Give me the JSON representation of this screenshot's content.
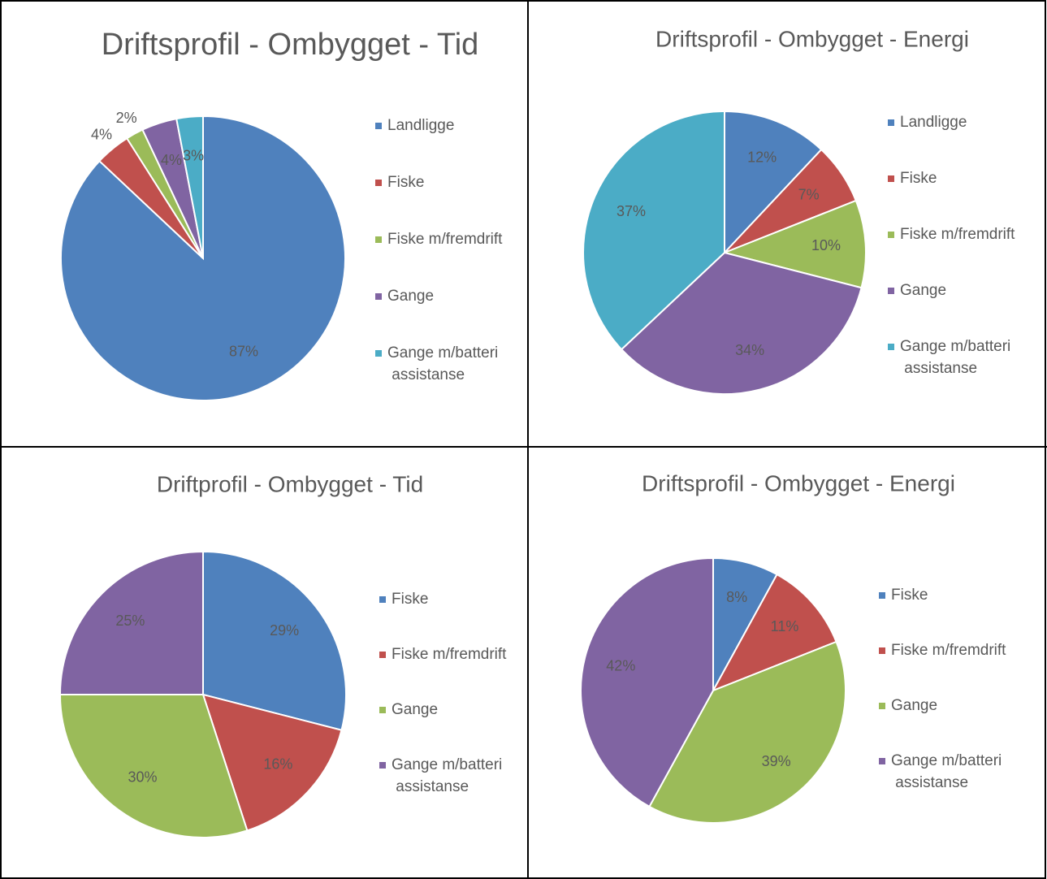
{
  "chart_data": [
    {
      "type": "pie",
      "title": "Driftsprofil - Ombygget - Tid",
      "categories": [
        "Landligge",
        "Fiske",
        "Fiske m/fremdrift",
        "Gange",
        "Gange m/batteri assistanse"
      ],
      "values": [
        87,
        4,
        2,
        4,
        3
      ],
      "value_labels": [
        "87%",
        "4%",
        "2%",
        "4%",
        "3%"
      ],
      "colors": [
        "#4f81bd",
        "#c0504d",
        "#9bbb59",
        "#8064a2",
        "#4bacc6"
      ]
    },
    {
      "type": "pie",
      "title": "Driftsprofil - Ombygget - Energi",
      "categories": [
        "Landligge",
        "Fiske",
        "Fiske m/fremdrift",
        "Gange",
        "Gange m/batteri assistanse"
      ],
      "values": [
        12,
        7,
        10,
        34,
        37
      ],
      "value_labels": [
        "12%",
        "7%",
        "10%",
        "34%",
        "37%"
      ],
      "colors": [
        "#4f81bd",
        "#c0504d",
        "#9bbb59",
        "#8064a2",
        "#4bacc6"
      ]
    },
    {
      "type": "pie",
      "title": "Driftprofil - Ombygget - Tid",
      "categories": [
        "Fiske",
        "Fiske m/fremdrift",
        "Gange",
        "Gange m/batteri assistanse"
      ],
      "values": [
        29,
        16,
        30,
        25
      ],
      "value_labels": [
        "29%",
        "16%",
        "30%",
        "25%"
      ],
      "colors": [
        "#4f81bd",
        "#c0504d",
        "#9bbb59",
        "#8064a2"
      ]
    },
    {
      "type": "pie",
      "title": "Driftsprofil - Ombygget - Energi",
      "categories": [
        "Fiske",
        "Fiske m/fremdrift",
        "Gange",
        "Gange m/batteri assistanse"
      ],
      "values": [
        8,
        11,
        39,
        42
      ],
      "value_labels": [
        "8%",
        "11%",
        "39%",
        "42%"
      ],
      "colors": [
        "#4f81bd",
        "#c0504d",
        "#9bbb59",
        "#8064a2"
      ]
    }
  ]
}
